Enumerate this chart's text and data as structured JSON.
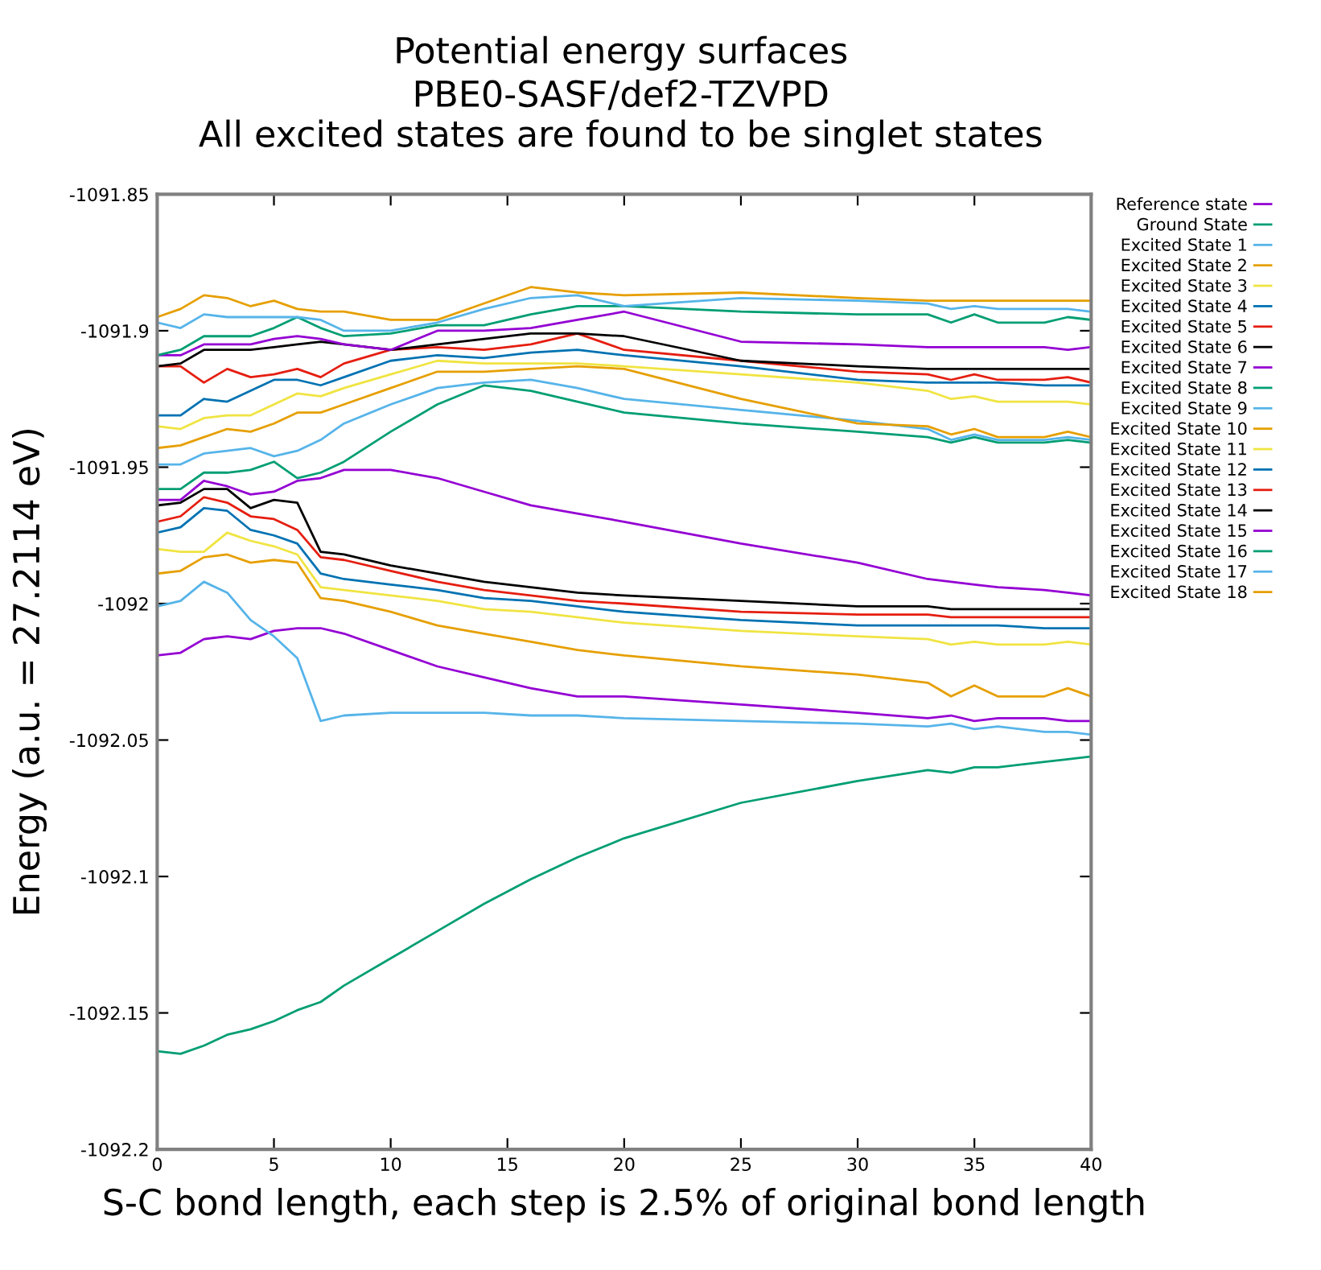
{
  "chart_data": {
    "type": "line",
    "title": "Potential energy surfaces",
    "subtitle": "PBE0-SASF/def2-TZVPD\nAll excited states are found to be singlet states",
    "xlabel": "S-C bond length, each step is 2.5% of original bond length",
    "ylabel": "Energy (a.u. = 27.2114 eV)",
    "x": [
      0,
      1,
      2,
      3,
      4,
      5,
      6,
      7,
      8,
      10,
      12,
      14,
      16,
      18,
      20,
      25,
      30,
      33,
      34,
      35,
      36,
      38,
      39,
      40
    ],
    "xlim": [
      0,
      40
    ],
    "xticks": [
      0,
      5,
      10,
      15,
      20,
      25,
      30,
      35,
      40
    ],
    "ylim": [
      -1092.2,
      -1091.85
    ],
    "yticks": [
      -1092.2,
      -1092.15,
      -1092.1,
      -1092.05,
      -1092,
      -1091.95,
      -1091.9,
      -1091.85
    ],
    "grid": false,
    "legend": "right",
    "marker": "none",
    "line_style": "solid",
    "series": [
      {
        "name": "Reference state",
        "color": "#9400d3",
        "values": [
          -1092.019,
          -1092.018,
          -1092.013,
          -1092.012,
          -1092.013,
          -1092.01,
          -1092.009,
          -1092.009,
          -1092.011,
          -1092.017,
          -1092.023,
          -1092.027,
          -1092.031,
          -1092.034,
          -1092.034,
          -1092.037,
          -1092.04,
          -1092.042,
          -1092.041,
          -1092.043,
          -1092.042,
          -1092.042,
          -1092.043,
          -1092.043
        ]
      },
      {
        "name": "Ground State",
        "color": "#009e73",
        "values": [
          -1092.164,
          -1092.165,
          -1092.162,
          -1092.158,
          -1092.156,
          -1092.153,
          -1092.149,
          -1092.146,
          -1092.14,
          -1092.13,
          -1092.12,
          -1092.11,
          -1092.101,
          -1092.093,
          -1092.086,
          -1092.073,
          -1092.065,
          -1092.061,
          -1092.062,
          -1092.06,
          -1092.06,
          -1092.058,
          -1092.057,
          -1092.056
        ]
      },
      {
        "name": "Excited State 1",
        "color": "#56b4e9",
        "values": [
          -1092.001,
          -1091.999,
          -1091.992,
          -1091.996,
          -1092.006,
          -1092.012,
          -1092.02,
          -1092.043,
          -1092.041,
          -1092.04,
          -1092.04,
          -1092.04,
          -1092.041,
          -1092.041,
          -1092.042,
          -1092.043,
          -1092.044,
          -1092.045,
          -1092.044,
          -1092.046,
          -1092.045,
          -1092.047,
          -1092.047,
          -1092.048
        ]
      },
      {
        "name": "Excited State 2",
        "color": "#e69f00",
        "values": [
          -1091.989,
          -1091.988,
          -1091.983,
          -1091.982,
          -1091.985,
          -1091.984,
          -1091.985,
          -1091.998,
          -1091.999,
          -1092.003,
          -1092.008,
          -1092.011,
          -1092.014,
          -1092.017,
          -1092.019,
          -1092.023,
          -1092.026,
          -1092.029,
          -1092.034,
          -1092.03,
          -1092.034,
          -1092.034,
          -1092.031,
          -1092.034
        ]
      },
      {
        "name": "Excited State 3",
        "color": "#f0e442",
        "values": [
          -1091.98,
          -1091.981,
          -1091.981,
          -1091.974,
          -1091.977,
          -1091.979,
          -1091.982,
          -1091.994,
          -1091.995,
          -1091.997,
          -1091.999,
          -1092.002,
          -1092.003,
          -1092.005,
          -1092.007,
          -1092.01,
          -1092.012,
          -1092.013,
          -1092.015,
          -1092.014,
          -1092.015,
          -1092.015,
          -1092.014,
          -1092.015
        ]
      },
      {
        "name": "Excited State 4",
        "color": "#0072b2",
        "values": [
          -1091.974,
          -1091.972,
          -1091.965,
          -1091.966,
          -1091.973,
          -1091.975,
          -1091.978,
          -1091.989,
          -1091.991,
          -1091.993,
          -1091.995,
          -1091.998,
          -1091.999,
          -1092.001,
          -1092.003,
          -1092.006,
          -1092.008,
          -1092.008,
          -1092.008,
          -1092.008,
          -1092.008,
          -1092.009,
          -1092.009,
          -1092.009
        ]
      },
      {
        "name": "Excited State 5",
        "color": "#e51e10",
        "values": [
          -1091.97,
          -1091.968,
          -1091.961,
          -1091.963,
          -1091.968,
          -1091.969,
          -1091.973,
          -1091.983,
          -1091.984,
          -1091.988,
          -1091.992,
          -1091.995,
          -1091.997,
          -1091.999,
          -1092.0,
          -1092.003,
          -1092.004,
          -1092.004,
          -1092.005,
          -1092.005,
          -1092.005,
          -1092.005,
          -1092.005,
          -1092.005
        ]
      },
      {
        "name": "Excited State 6",
        "color": "#000000",
        "values": [
          -1091.964,
          -1091.963,
          -1091.958,
          -1091.958,
          -1091.965,
          -1091.962,
          -1091.963,
          -1091.981,
          -1091.982,
          -1091.986,
          -1091.989,
          -1091.992,
          -1091.994,
          -1091.996,
          -1091.997,
          -1091.999,
          -1092.001,
          -1092.001,
          -1092.002,
          -1092.002,
          -1092.002,
          -1092.002,
          -1092.002,
          -1092.002
        ]
      },
      {
        "name": "Excited State 7",
        "color": "#9400d3",
        "values": [
          -1091.962,
          -1091.962,
          -1091.955,
          -1091.957,
          -1091.96,
          -1091.959,
          -1091.955,
          -1091.954,
          -1091.951,
          -1091.951,
          -1091.954,
          -1091.959,
          -1091.964,
          -1091.967,
          -1091.97,
          -1091.978,
          -1091.985,
          -1091.991,
          -1091.992,
          -1091.993,
          -1091.994,
          -1091.995,
          -1091.996,
          -1091.997
        ]
      },
      {
        "name": "Excited State 8",
        "color": "#009e73",
        "values": [
          -1091.958,
          -1091.958,
          -1091.952,
          -1091.952,
          -1091.951,
          -1091.948,
          -1091.954,
          -1091.952,
          -1091.948,
          -1091.937,
          -1091.927,
          -1091.92,
          -1091.922,
          -1091.926,
          -1091.93,
          -1091.934,
          -1091.937,
          -1091.939,
          -1091.941,
          -1091.939,
          -1091.941,
          -1091.941,
          -1091.94,
          -1091.941
        ]
      },
      {
        "name": "Excited State 9",
        "color": "#56b4e9",
        "values": [
          -1091.949,
          -1091.949,
          -1091.945,
          -1091.944,
          -1091.943,
          -1091.946,
          -1091.944,
          -1091.94,
          -1091.934,
          -1091.927,
          -1091.921,
          -1091.919,
          -1091.918,
          -1091.921,
          -1091.925,
          -1091.929,
          -1091.933,
          -1091.936,
          -1091.94,
          -1091.938,
          -1091.94,
          -1091.94,
          -1091.939,
          -1091.94
        ]
      },
      {
        "name": "Excited State 10",
        "color": "#e69f00",
        "values": [
          -1091.943,
          -1091.942,
          -1091.939,
          -1091.936,
          -1091.937,
          -1091.934,
          -1091.93,
          -1091.93,
          -1091.927,
          -1091.921,
          -1091.915,
          -1091.915,
          -1091.914,
          -1091.913,
          -1091.914,
          -1091.925,
          -1091.934,
          -1091.935,
          -1091.938,
          -1091.936,
          -1091.939,
          -1091.939,
          -1091.937,
          -1091.939
        ]
      },
      {
        "name": "Excited State 11",
        "color": "#f0e442",
        "values": [
          -1091.935,
          -1091.936,
          -1091.932,
          -1091.931,
          -1091.931,
          -1091.927,
          -1091.923,
          -1091.924,
          -1091.921,
          -1091.916,
          -1091.911,
          -1091.912,
          -1091.912,
          -1091.912,
          -1091.913,
          -1091.916,
          -1091.919,
          -1091.922,
          -1091.925,
          -1091.924,
          -1091.926,
          -1091.926,
          -1091.926,
          -1091.927
        ]
      },
      {
        "name": "Excited State 12",
        "color": "#0072b2",
        "values": [
          -1091.931,
          -1091.931,
          -1091.925,
          -1091.926,
          -1091.922,
          -1091.918,
          -1091.918,
          -1091.92,
          -1091.917,
          -1091.911,
          -1091.909,
          -1091.91,
          -1091.908,
          -1091.907,
          -1091.909,
          -1091.913,
          -1091.918,
          -1091.919,
          -1091.919,
          -1091.919,
          -1091.919,
          -1091.92,
          -1091.92,
          -1091.92
        ]
      },
      {
        "name": "Excited State 13",
        "color": "#e51e10",
        "values": [
          -1091.913,
          -1091.913,
          -1091.919,
          -1091.914,
          -1091.917,
          -1091.916,
          -1091.914,
          -1091.917,
          -1091.912,
          -1091.907,
          -1091.906,
          -1091.907,
          -1091.905,
          -1091.901,
          -1091.907,
          -1091.911,
          -1091.915,
          -1091.916,
          -1091.918,
          -1091.916,
          -1091.918,
          -1091.918,
          -1091.917,
          -1091.919
        ]
      },
      {
        "name": "Excited State 14",
        "color": "#000000",
        "values": [
          -1091.913,
          -1091.912,
          -1091.907,
          -1091.907,
          -1091.907,
          -1091.906,
          -1091.905,
          -1091.904,
          -1091.905,
          -1091.907,
          -1091.905,
          -1091.903,
          -1091.901,
          -1091.901,
          -1091.902,
          -1091.911,
          -1091.913,
          -1091.914,
          -1091.914,
          -1091.914,
          -1091.914,
          -1091.914,
          -1091.914,
          -1091.914
        ]
      },
      {
        "name": "Excited State 15",
        "color": "#9400d3",
        "values": [
          -1091.909,
          -1091.909,
          -1091.905,
          -1091.905,
          -1091.905,
          -1091.903,
          -1091.902,
          -1091.903,
          -1091.905,
          -1091.907,
          -1091.9,
          -1091.9,
          -1091.899,
          -1091.896,
          -1091.893,
          -1091.904,
          -1091.905,
          -1091.906,
          -1091.906,
          -1091.906,
          -1091.906,
          -1091.906,
          -1091.907,
          -1091.906
        ]
      },
      {
        "name": "Excited State 16",
        "color": "#009e73",
        "values": [
          -1091.909,
          -1091.907,
          -1091.902,
          -1091.902,
          -1091.902,
          -1091.899,
          -1091.895,
          -1091.899,
          -1091.902,
          -1091.901,
          -1091.898,
          -1091.898,
          -1091.894,
          -1091.891,
          -1091.891,
          -1091.893,
          -1091.894,
          -1091.894,
          -1091.897,
          -1091.894,
          -1091.897,
          -1091.897,
          -1091.895,
          -1091.896
        ]
      },
      {
        "name": "Excited State 17",
        "color": "#56b4e9",
        "values": [
          -1091.897,
          -1091.899,
          -1091.894,
          -1091.895,
          -1091.895,
          -1091.895,
          -1091.895,
          -1091.896,
          -1091.9,
          -1091.9,
          -1091.897,
          -1091.892,
          -1091.888,
          -1091.887,
          -1091.891,
          -1091.888,
          -1091.889,
          -1091.89,
          -1091.892,
          -1091.891,
          -1091.892,
          -1091.892,
          -1091.892,
          -1091.893
        ]
      },
      {
        "name": "Excited State 18",
        "color": "#e69f00",
        "values": [
          -1091.895,
          -1091.892,
          -1091.887,
          -1091.888,
          -1091.891,
          -1091.889,
          -1091.892,
          -1091.893,
          -1091.893,
          -1091.896,
          -1091.896,
          -1091.89,
          -1091.884,
          -1091.886,
          -1091.887,
          -1091.886,
          -1091.888,
          -1091.889,
          -1091.889,
          -1091.889,
          -1091.889,
          -1091.889,
          -1091.889,
          -1091.889
        ]
      }
    ]
  }
}
